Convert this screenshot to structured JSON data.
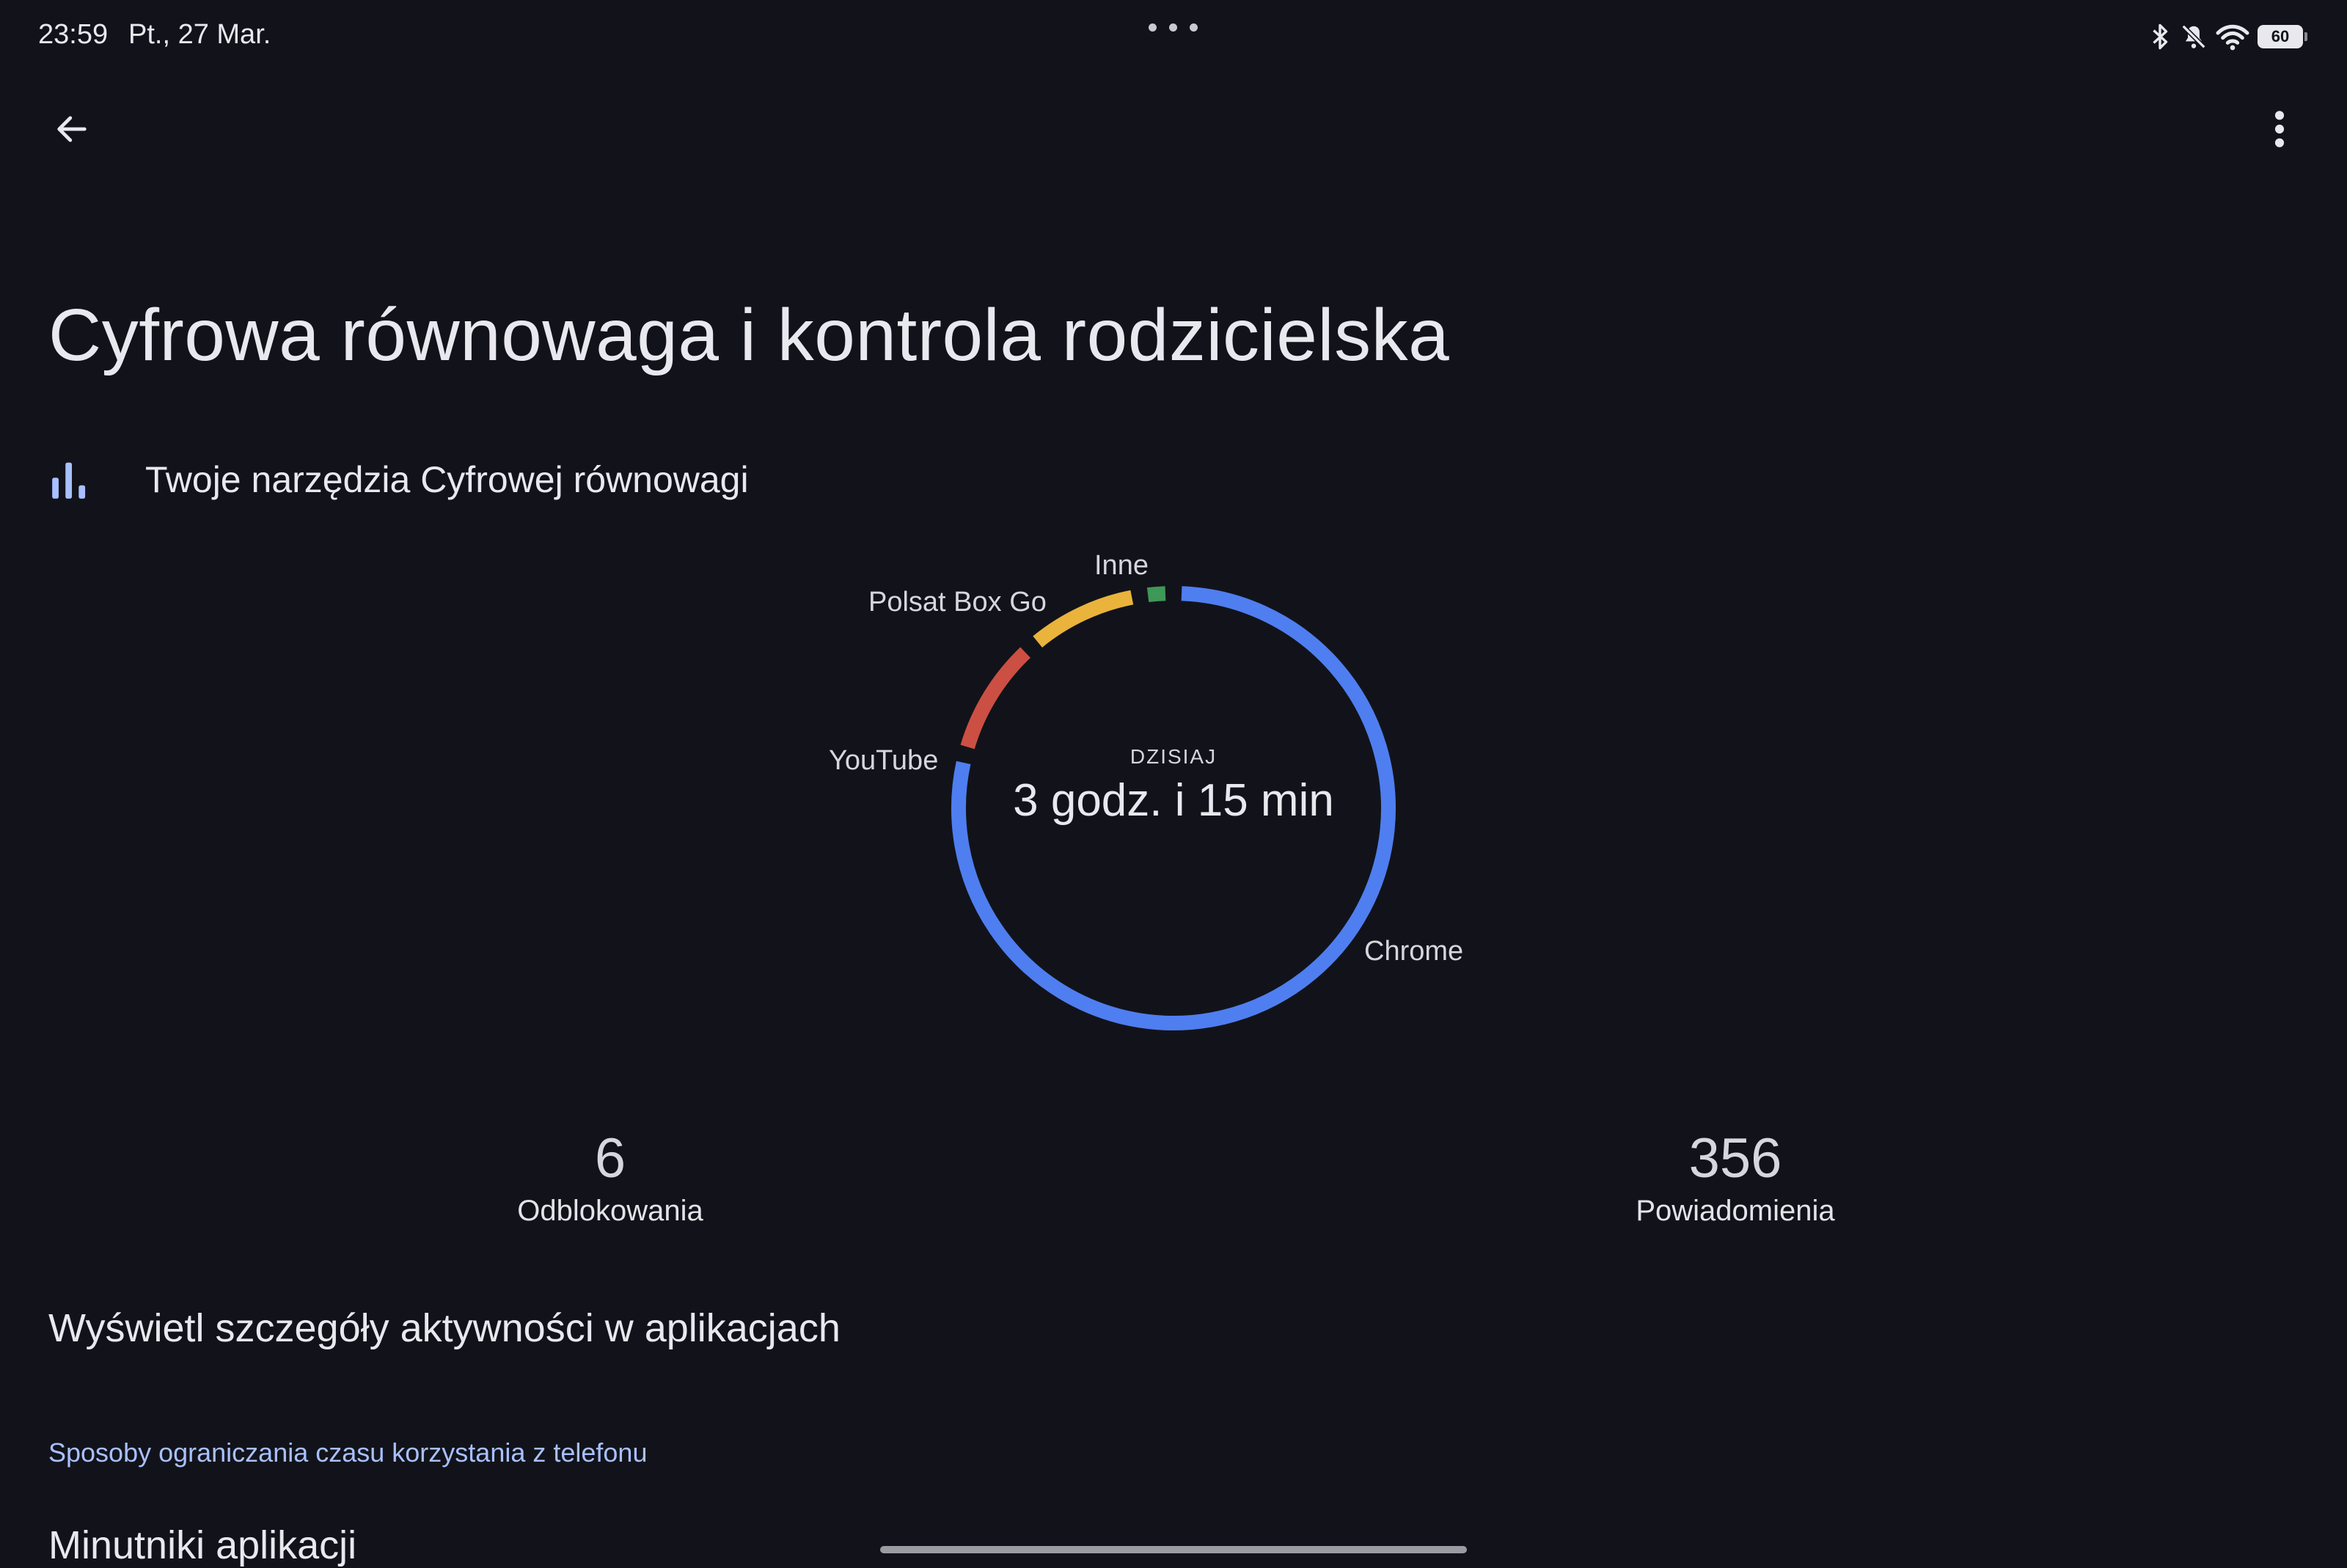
{
  "status_bar": {
    "time": "23:59",
    "date": "Pt., 27 Mar.",
    "battery": "60",
    "icons": [
      "bluetooth-icon",
      "notifications-off-icon",
      "wifi-icon",
      "battery-icon"
    ]
  },
  "toolbar": {
    "back_icon": "arrow-left-icon",
    "menu_icon": "more-vert-icon"
  },
  "page": {
    "title": "Cyfrowa równowaga i kontrola rodzicielska",
    "section": {
      "icon": "bar-chart-icon",
      "label": "Twoje narzędzia Cyfrowej równowagi"
    }
  },
  "usage": {
    "caption": "DZISIAJ",
    "total": "3 godz. i 15 min",
    "segments": [
      {
        "label": "Chrome",
        "color": "#4f7ef0",
        "fraction": 0.79
      },
      {
        "label": "YouTube",
        "color": "#cc4f43",
        "fraction": 0.095
      },
      {
        "label": "Polsat Box Go",
        "color": "#e9b33c",
        "fraction": 0.09
      },
      {
        "label": "Inne",
        "color": "#3e9857",
        "fraction": 0.025
      }
    ]
  },
  "stats": {
    "unlocks": {
      "value": "6",
      "label": "Odblokowania"
    },
    "notifications": {
      "value": "356",
      "label": "Powiadomienia"
    }
  },
  "details_link": "Wyświetl szczegóły aktywności w aplikacjach",
  "limits_header": "Sposoby ograniczania czasu korzystania z telefonu",
  "app_timers": "Minutniki aplikacji",
  "colors": {
    "background": "#12131a",
    "accent": "#a8c0ff",
    "icon_accent": "#a8c0ff"
  }
}
